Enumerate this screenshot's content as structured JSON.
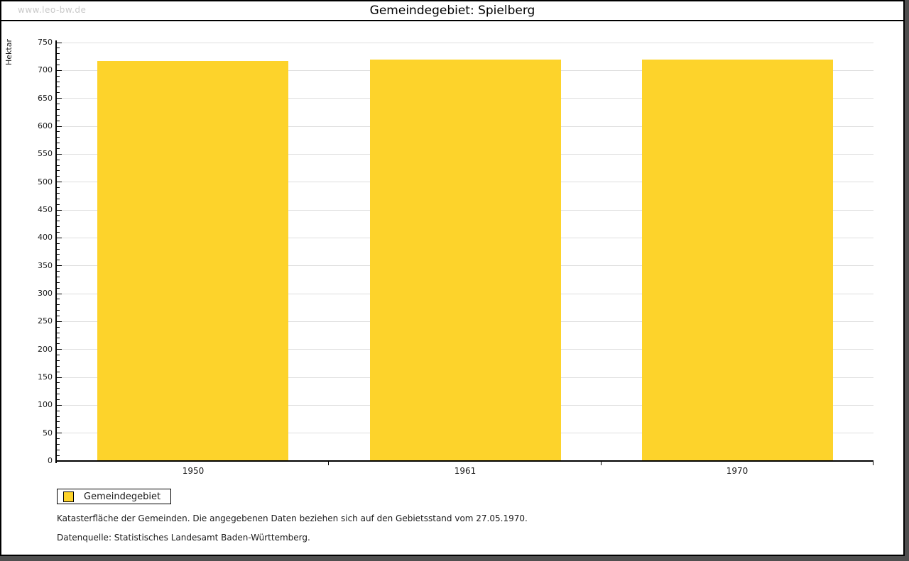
{
  "watermark": "www.leo-bw.de",
  "chart_data": {
    "type": "bar",
    "title": "Gemeindegebiet: Spielberg",
    "ylabel": "Hektar",
    "xlabel": "",
    "categories": [
      "1950",
      "1961",
      "1970"
    ],
    "series": [
      {
        "name": "Gemeindegebiet",
        "color": "#FDD32B",
        "values": [
          717,
          719,
          719
        ]
      }
    ],
    "ylim": [
      0,
      750
    ],
    "y_major_step": 50,
    "y_minor_step": 10,
    "grid": "horizontal-major",
    "legend_position": "bottom-left"
  },
  "footnotes": [
    "Katasterfläche der Gemeinden. Die angegebenen Daten beziehen sich auf den Gebietsstand vom 27.05.1970.",
    "Datenquelle: Statistisches Landesamt Baden-Württemberg."
  ],
  "colors": {
    "bar": "#FDD32B",
    "gridline": "#dedede",
    "axis": "#000000",
    "shadow": "#4f4f4f",
    "watermark_text": "#c9c9c9"
  }
}
